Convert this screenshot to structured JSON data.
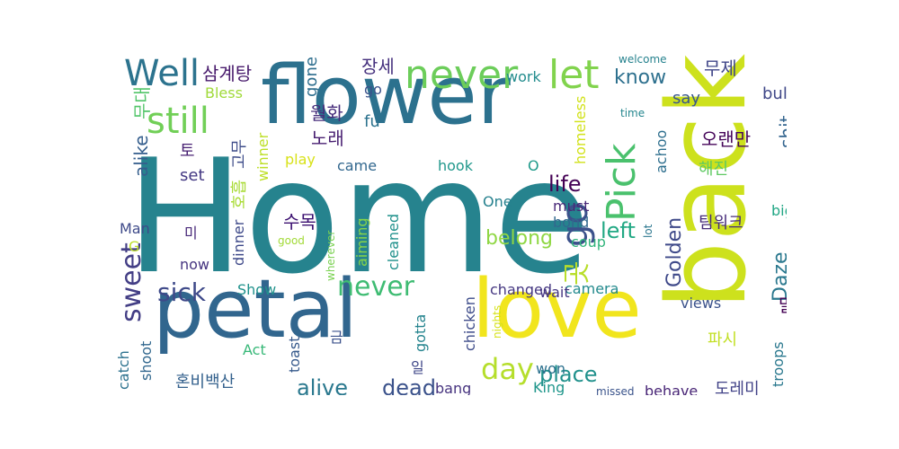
{
  "words": [
    {
      "text": "Home",
      "color": "#26838e"
    },
    {
      "text": "back",
      "color": "#cde11d"
    },
    {
      "text": "flower",
      "color": "#2c718e"
    },
    {
      "text": "petal",
      "color": "#31668e"
    },
    {
      "text": "love",
      "color": "#f1e51d"
    },
    {
      "text": "never",
      "color": "#6ccd5a"
    },
    {
      "text": "let",
      "color": "#81d34d"
    },
    {
      "text": "still",
      "color": "#71cf57"
    },
    {
      "text": "Well",
      "color": "#2c738e"
    },
    {
      "text": "Pick",
      "color": "#4ac16d"
    },
    {
      "text": "go",
      "color": "#3b518b"
    },
    {
      "text": "sweet",
      "color": "#433e85"
    },
    {
      "text": "sick",
      "color": "#3e4989"
    },
    {
      "text": "never",
      "color": "#3fbc73"
    },
    {
      "text": "day",
      "color": "#b5de2b"
    },
    {
      "text": "alive",
      "color": "#2a788e"
    },
    {
      "text": "dead",
      "color": "#3b528b"
    },
    {
      "text": "place",
      "color": "#21918c"
    },
    {
      "text": "belong",
      "color": "#8fd744"
    },
    {
      "text": "life",
      "color": "#440154"
    },
    {
      "text": "left",
      "color": "#22a884"
    },
    {
      "text": "know",
      "color": "#2d708e"
    },
    {
      "text": "곳",
      "color": "#b8de29"
    },
    {
      "text": "Golden",
      "color": "#3e4989"
    },
    {
      "text": "Daze",
      "color": "#2a788e"
    },
    {
      "text": "삼계탕",
      "color": "#481a6c"
    },
    {
      "text": "장세",
      "color": "#46317e"
    },
    {
      "text": "무제",
      "color": "#404688"
    },
    {
      "text": "도",
      "color": "#355f8d"
    },
    {
      "text": "무대",
      "color": "#52c569"
    },
    {
      "text": "Bless",
      "color": "#a0da39"
    },
    {
      "text": "gone",
      "color": "#2e6e8e"
    },
    {
      "text": "go",
      "color": "#3b528b"
    },
    {
      "text": "work",
      "color": "#228c8d"
    },
    {
      "text": "welcome",
      "color": "#26828e"
    },
    {
      "text": "say",
      "color": "#39568c"
    },
    {
      "text": "bull",
      "color": "#3f4788"
    },
    {
      "text": "월화",
      "color": "#472d7b"
    },
    {
      "text": "homeless",
      "color": "#d2e21b"
    },
    {
      "text": "time",
      "color": "#24868e"
    },
    {
      "text": "shit",
      "color": "#32648e"
    },
    {
      "text": "노래",
      "color": "#481f71"
    },
    {
      "text": "fu",
      "color": "#2c728e"
    },
    {
      "text": "토",
      "color": "#482173"
    },
    {
      "text": "고무",
      "color": "#3e4c8a"
    },
    {
      "text": "winner",
      "color": "#bddf26"
    },
    {
      "text": "play",
      "color": "#d8e219"
    },
    {
      "text": "achoo",
      "color": "#2e6f8e"
    },
    {
      "text": "오랜만",
      "color": "#450559"
    },
    {
      "text": "alike",
      "color": "#355e8d"
    },
    {
      "text": "set",
      "color": "#443983"
    },
    {
      "text": "came",
      "color": "#31678e"
    },
    {
      "text": "hook",
      "color": "#1f978b"
    },
    {
      "text": "O",
      "color": "#1f9a8a"
    },
    {
      "text": "해진",
      "color": "#5ec962"
    },
    {
      "text": "호흡",
      "color": "#a8db34"
    },
    {
      "text": "수목",
      "color": "#3b0f70"
    },
    {
      "text": "One",
      "color": "#26818e"
    },
    {
      "text": "must",
      "color": "#482878"
    },
    {
      "text": "bond",
      "color": "#31688e"
    },
    {
      "text": "팀워크",
      "color": "#472c7a"
    },
    {
      "text": "big",
      "color": "#22a785"
    },
    {
      "text": "Man",
      "color": "#3e4a89"
    },
    {
      "text": "미",
      "color": "#482979"
    },
    {
      "text": "dinner",
      "color": "#3e4989"
    },
    {
      "text": "good",
      "color": "#a2da37"
    },
    {
      "text": "wherever",
      "color": "#7ad151"
    },
    {
      "text": "aiming",
      "color": "#87d549"
    },
    {
      "text": "cleaned",
      "color": "#21918c"
    },
    {
      "text": "coup",
      "color": "#31b57b"
    },
    {
      "text": "lot",
      "color": "#2a768e"
    },
    {
      "text": "G",
      "color": "#bddf26"
    },
    {
      "text": "now",
      "color": "#463480"
    },
    {
      "text": "Show",
      "color": "#20928c"
    },
    {
      "text": "changed",
      "color": "#453781"
    },
    {
      "text": "camera",
      "color": "#238a8d"
    },
    {
      "text": "wait",
      "color": "#453581"
    },
    {
      "text": "views",
      "color": "#3b528b"
    },
    {
      "text": "nights",
      "color": "#d5e21a"
    },
    {
      "text": "말",
      "color": "#440154"
    },
    {
      "text": "troops",
      "color": "#2a788e"
    },
    {
      "text": "toast",
      "color": "#375a8c"
    },
    {
      "text": "chicken",
      "color": "#3e4c8a"
    },
    {
      "text": "gotta",
      "color": "#25848e"
    },
    {
      "text": "Act",
      "color": "#37b878"
    },
    {
      "text": "금",
      "color": "#3b518b"
    },
    {
      "text": "일",
      "color": "#3f4788"
    },
    {
      "text": "catch",
      "color": "#2c728e"
    },
    {
      "text": "shoot",
      "color": "#31678e"
    },
    {
      "text": "파시",
      "color": "#c2df23"
    },
    {
      "text": "won",
      "color": "#2c718e"
    },
    {
      "text": "King",
      "color": "#1f968b"
    },
    {
      "text": "behave",
      "color": "#482576"
    },
    {
      "text": "도레미",
      "color": "#414287"
    },
    {
      "text": "missed",
      "color": "#3a538b"
    },
    {
      "text": "bang",
      "color": "#46337f"
    },
    {
      "text": "혼비백산",
      "color": "#34618d"
    }
  ]
}
